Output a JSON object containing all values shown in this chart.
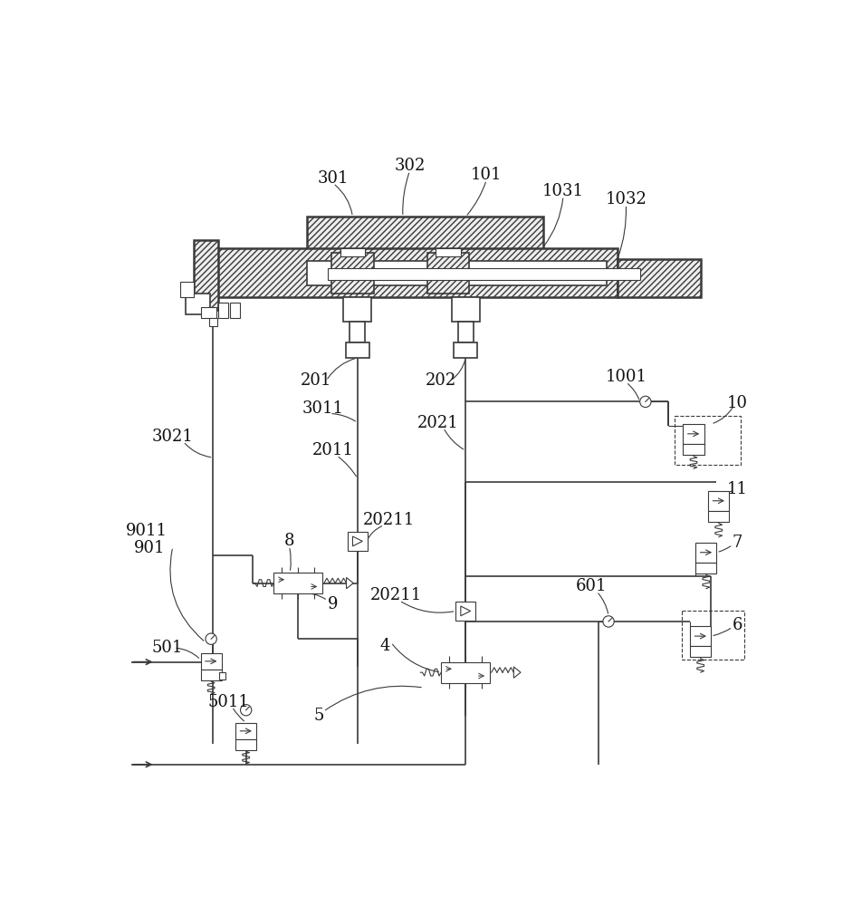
{
  "bg": "#ffffff",
  "lc": "#3a3a3a",
  "lw_thin": 0.8,
  "lw_med": 1.2,
  "lw_thick": 1.8,
  "fs_label": 13,
  "fs_small": 11
}
